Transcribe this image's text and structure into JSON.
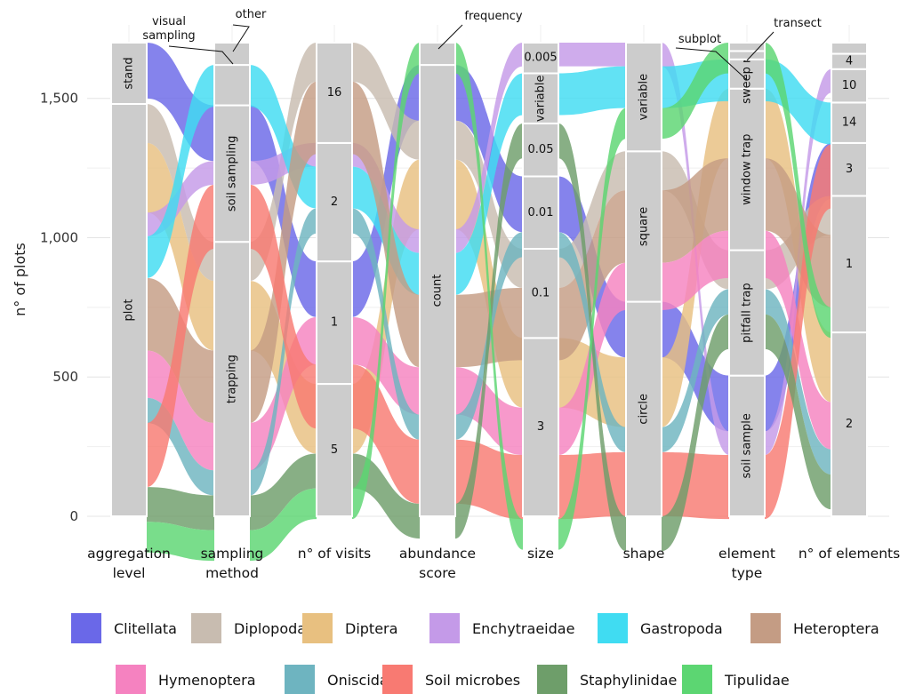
{
  "chart_data": {
    "type": "alluvial",
    "ylabel": "n° of plots",
    "ylim": [
      0,
      1700
    ],
    "yticks": [
      0,
      500,
      1000,
      1500
    ],
    "ytick_labels": [
      "0",
      "500",
      "1,000",
      "1,500"
    ],
    "grid": true,
    "legend_placement": "bottom",
    "axes": [
      {
        "id": "agg",
        "label": [
          "aggregation",
          "level"
        ],
        "nodes": [
          {
            "id": "plot",
            "label": "plot",
            "value": 1480,
            "rotate": true
          },
          {
            "id": "stand",
            "label": "stand",
            "value": 220,
            "rotate": true
          }
        ]
      },
      {
        "id": "samp",
        "label": [
          "sampling",
          "method"
        ],
        "nodes": [
          {
            "id": "trapping",
            "label": "trapping",
            "value": 985,
            "rotate": true
          },
          {
            "id": "soil",
            "label": "soil sampling",
            "value": 490,
            "rotate": true
          },
          {
            "id": "visual",
            "label": "visual sampling",
            "value": 145,
            "rotate": true,
            "callout": [
              "visual",
              "sampling"
            ]
          },
          {
            "id": "other",
            "label": "other",
            "value": 80,
            "rotate": true,
            "callout": [
              "other"
            ]
          }
        ]
      },
      {
        "id": "visits",
        "label": [
          "n° of visits"
        ],
        "nodes": [
          {
            "id": "v5",
            "label": "5",
            "value": 475
          },
          {
            "id": "v1",
            "label": "1",
            "value": 440
          },
          {
            "id": "v2",
            "label": "2",
            "value": 425
          },
          {
            "id": "v16",
            "label": "16",
            "value": 360
          }
        ]
      },
      {
        "id": "abund",
        "label": [
          "abundance",
          "score"
        ],
        "nodes": [
          {
            "id": "count",
            "label": "count",
            "value": 1620,
            "rotate": true
          },
          {
            "id": "frequency",
            "label": "frequency",
            "value": 80,
            "rotate": true,
            "callout": [
              "frequency"
            ]
          }
        ]
      },
      {
        "id": "size",
        "label": [
          "size"
        ],
        "nodes": [
          {
            "id": "s3",
            "label": "3",
            "value": 640
          },
          {
            "id": "s01",
            "label": "0.1",
            "value": 320
          },
          {
            "id": "s001",
            "label": "0.01",
            "value": 260
          },
          {
            "id": "s005",
            "label": "0.05",
            "value": 190
          },
          {
            "id": "svar",
            "label": "variable",
            "value": 180,
            "rotate": true
          },
          {
            "id": "s0005",
            "label": "0.005",
            "value": 110
          }
        ]
      },
      {
        "id": "shape",
        "label": [
          "shape"
        ],
        "nodes": [
          {
            "id": "circle",
            "label": "circle",
            "value": 770,
            "rotate": true
          },
          {
            "id": "square",
            "label": "square",
            "value": 540,
            "rotate": true
          },
          {
            "id": "variable",
            "label": "variable",
            "value": 390,
            "rotate": true
          }
        ]
      },
      {
        "id": "etype",
        "label": [
          "element",
          "type"
        ],
        "nodes": [
          {
            "id": "soilsample",
            "label": "soil sample",
            "value": 505,
            "rotate": true
          },
          {
            "id": "pitfall",
            "label": "pitfall trap",
            "value": 450,
            "rotate": true
          },
          {
            "id": "window",
            "label": "window trap",
            "value": 580,
            "rotate": true
          },
          {
            "id": "sweep",
            "label": "sweep net",
            "value": 105,
            "rotate": true
          },
          {
            "id": "subplot",
            "label": "subplot",
            "value": 30,
            "rotate": true,
            "callout": [
              "subplot"
            ]
          },
          {
            "id": "transect",
            "label": "transect",
            "value": 30,
            "rotate": true,
            "callout": [
              "transect"
            ]
          }
        ]
      },
      {
        "id": "nelem",
        "label": [
          "n° of elements"
        ],
        "nodes": [
          {
            "id": "e2",
            "label": "2",
            "value": 660
          },
          {
            "id": "e1",
            "label": "1",
            "value": 490
          },
          {
            "id": "e3",
            "label": "3",
            "value": 190
          },
          {
            "id": "e14",
            "label": "14",
            "value": 145
          },
          {
            "id": "e10",
            "label": "10",
            "value": 120
          },
          {
            "id": "e4",
            "label": "4",
            "value": 55
          },
          {
            "id": "e4b",
            "label": "",
            "value": 40
          }
        ]
      }
    ],
    "series": [
      {
        "name": "Clitellata",
        "color": "#6a68e8",
        "value": 200,
        "path": [
          "stand",
          "soil",
          "v1",
          "count",
          "s001",
          "circle",
          "soilsample",
          "e3"
        ]
      },
      {
        "name": "Diplopoda",
        "color": "#c8bcb0",
        "value": 140,
        "path": [
          "plot",
          "trapping",
          "v16",
          "count",
          "s01",
          "square",
          "pitfall",
          "e1"
        ]
      },
      {
        "name": "Diptera",
        "color": "#e8c080",
        "value": 250,
        "path": [
          "plot",
          "trapping",
          "v5",
          "count",
          "s3",
          "circle",
          "window",
          "e2"
        ]
      },
      {
        "name": "Enchytraeidae",
        "color": "#c49ae8",
        "value": 85,
        "path": [
          "plot",
          "soil",
          "v2",
          "count",
          "s0005",
          "variable",
          "soilsample",
          "e10"
        ]
      },
      {
        "name": "Gastropoda",
        "color": "#40dcf2",
        "value": 150,
        "path": [
          "plot",
          "visual",
          "v2",
          "count",
          "svar",
          "variable",
          "sweep",
          "e14"
        ]
      },
      {
        "name": "Heteroptera",
        "color": "#c49c84",
        "value": 260,
        "path": [
          "plot",
          "trapping",
          "v16",
          "count",
          "s01",
          "square",
          "window",
          "e1"
        ]
      },
      {
        "name": "Hymenoptera",
        "color": "#f582c0",
        "value": 170,
        "path": [
          "plot",
          "trapping",
          "v1",
          "count",
          "s3",
          "square",
          "window",
          "e2"
        ]
      },
      {
        "name": "Oniscidae",
        "color": "#6eb4c0",
        "value": 90,
        "path": [
          "plot",
          "trapping",
          "v2",
          "count",
          "s001",
          "circle",
          "pitfall",
          "e2"
        ]
      },
      {
        "name": "Soil microbes",
        "color": "#f87a72",
        "value": 230,
        "path": [
          "plot",
          "soil",
          "v1",
          "count",
          "s3",
          "circle",
          "soilsample",
          "e14"
        ]
      },
      {
        "name": "Staphylinidae",
        "color": "#6e9e6a",
        "value": 125,
        "path": [
          "plot",
          "trapping",
          "v5",
          "count",
          "s005",
          "circle",
          "pitfall",
          "e2"
        ]
      },
      {
        "name": "Tipulidae",
        "color": "#5cd672",
        "value": 110,
        "path": [
          "plot",
          "trapping",
          "v5",
          "frequency",
          "s3",
          "variable",
          "transect",
          "e1"
        ]
      }
    ]
  },
  "legend": {
    "row1": [
      "Clitellata",
      "Diplopoda",
      "Diptera",
      "Enchytraeidae",
      "Gastropoda",
      "Heteroptera"
    ],
    "row2": [
      "Hymenoptera",
      "Oniscidae",
      "Soil microbes",
      "Staphylinidae",
      "Tipulidae"
    ]
  }
}
